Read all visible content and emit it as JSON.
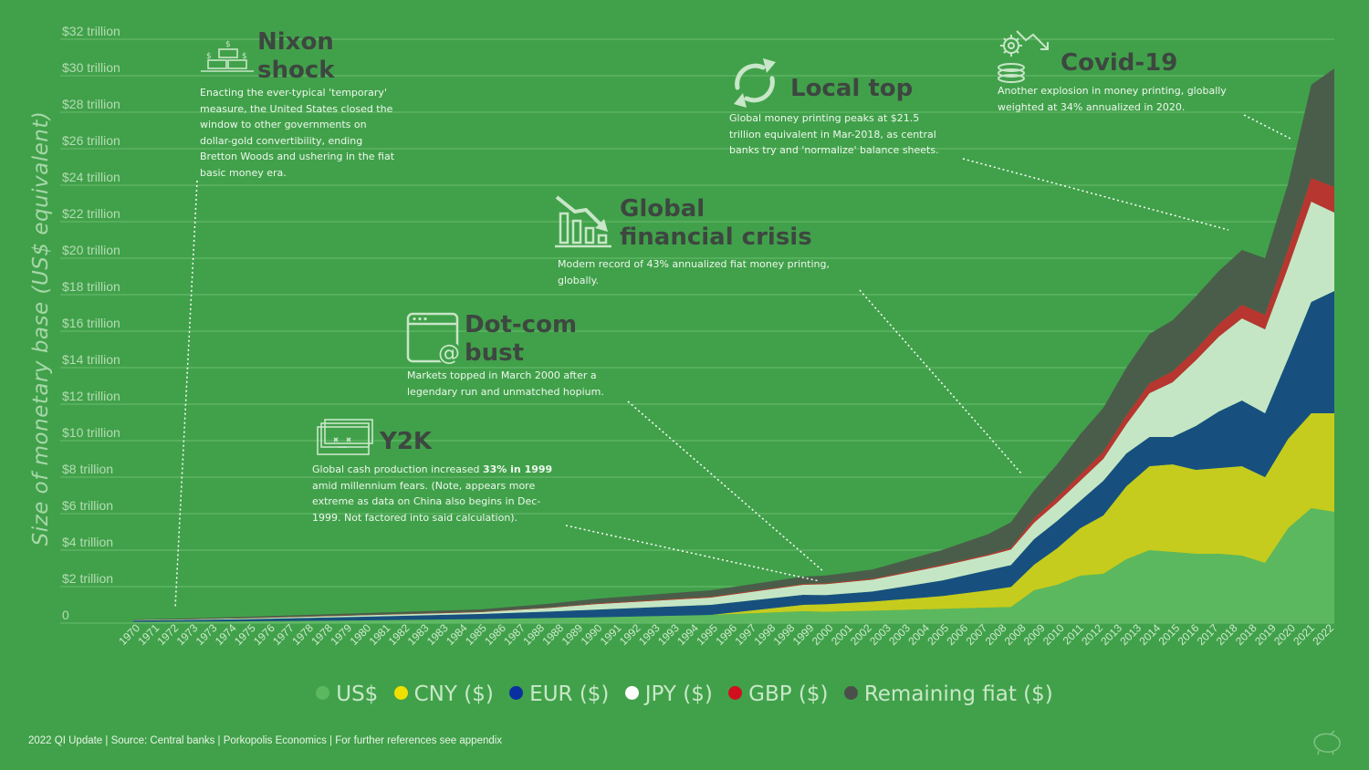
{
  "chart_data": {
    "type": "area",
    "stacked": true,
    "ylabel": "Size of monetary base (US$ equivalent)",
    "ylim": [
      0,
      32
    ],
    "y_ticks": [
      "0",
      "$2 trillion",
      "$4 trillion",
      "$6 trillion",
      "$8 trillion",
      "$10 trillion",
      "$12 trillion",
      "$14 trillion",
      "$16 trillion",
      "$18 trillion",
      "$20 trillion",
      "$22 trillion",
      "$24 trillion",
      "$26 trillion",
      "$28 trillion",
      "$30 trillion",
      "$32 trillion"
    ],
    "x_ticks": [
      "1970",
      "1971",
      "1972",
      "1973",
      "1973",
      "1974",
      "1975",
      "1976",
      "1977",
      "1978",
      "1978",
      "1979",
      "1980",
      "1981",
      "1982",
      "1983",
      "1983",
      "1984",
      "1985",
      "1986",
      "1987",
      "1988",
      "1988",
      "1989",
      "1990",
      "1991",
      "1992",
      "1993",
      "1993",
      "1994",
      "1995",
      "1996",
      "1997",
      "1998",
      "1998",
      "1999",
      "2000",
      "2001",
      "2002",
      "2003",
      "2003",
      "2004",
      "2005",
      "2006",
      "2007",
      "2008",
      "2008",
      "2009",
      "2010",
      "2011",
      "2012",
      "2013",
      "2013",
      "2014",
      "2015",
      "2016",
      "2017",
      "2018",
      "2018",
      "2019",
      "2020",
      "2021",
      "2022"
    ],
    "x": [
      1970,
      1972,
      1975,
      1980,
      1985,
      1988,
      1990,
      1995,
      1999,
      2000,
      2002,
      2005,
      2007,
      2008,
      2009,
      2010,
      2011,
      2012,
      2013,
      2014,
      2015,
      2016,
      2017,
      2018,
      2019,
      2020,
      2021,
      2022
    ],
    "series": [
      {
        "name": "US$",
        "color": "#5cb85e",
        "values": [
          0.06,
          0.08,
          0.1,
          0.15,
          0.22,
          0.28,
          0.32,
          0.45,
          0.65,
          0.62,
          0.68,
          0.78,
          0.85,
          0.88,
          1.8,
          2.1,
          2.6,
          2.7,
          3.5,
          4.0,
          3.9,
          3.8,
          3.8,
          3.7,
          3.3,
          5.2,
          6.3,
          6.1
        ]
      },
      {
        "name": "CNY ($)",
        "color": "#c6cc1d",
        "values": [
          0,
          0,
          0,
          0,
          0,
          0,
          0,
          0,
          0.35,
          0.42,
          0.5,
          0.7,
          0.95,
          1.1,
          1.4,
          2.0,
          2.6,
          3.2,
          4.0,
          4.6,
          4.8,
          4.6,
          4.7,
          4.9,
          4.7,
          4.9,
          5.2,
          5.4
        ]
      },
      {
        "name": "EUR ($)",
        "color": "#17507f",
        "values": [
          0.08,
          0.09,
          0.12,
          0.2,
          0.28,
          0.35,
          0.42,
          0.55,
          0.55,
          0.5,
          0.55,
          0.85,
          1.1,
          1.2,
          1.4,
          1.5,
          1.5,
          1.9,
          1.8,
          1.6,
          1.5,
          2.4,
          3.1,
          3.6,
          3.5,
          4.4,
          6.1,
          6.7
        ]
      },
      {
        "name": "JPY ($)",
        "color": "#c5e6c5",
        "values": [
          0.02,
          0.03,
          0.05,
          0.08,
          0.1,
          0.2,
          0.3,
          0.4,
          0.55,
          0.6,
          0.65,
          0.8,
          0.8,
          0.85,
          0.9,
          1.0,
          1.1,
          1.2,
          1.6,
          2.4,
          3.0,
          3.6,
          4.1,
          4.5,
          4.6,
          5.0,
          5.5,
          4.3
        ]
      },
      {
        "name": "GBP ($)",
        "color": "#b73630",
        "values": [
          0.01,
          0.01,
          0.02,
          0.02,
          0.03,
          0.03,
          0.04,
          0.05,
          0.05,
          0.05,
          0.06,
          0.07,
          0.07,
          0.1,
          0.25,
          0.3,
          0.35,
          0.4,
          0.5,
          0.55,
          0.6,
          0.6,
          0.7,
          0.75,
          0.8,
          1.0,
          1.3,
          1.4
        ]
      },
      {
        "name": "Remaining fiat ($)",
        "color": "#4a5d4a",
        "values": [
          0.03,
          0.04,
          0.06,
          0.1,
          0.12,
          0.2,
          0.25,
          0.35,
          0.4,
          0.42,
          0.5,
          0.8,
          1.1,
          1.4,
          1.5,
          1.8,
          2.2,
          2.4,
          2.6,
          2.7,
          2.8,
          2.9,
          2.9,
          3.0,
          3.1,
          3.6,
          5.1,
          6.5
        ]
      }
    ],
    "grid": true,
    "legend_position": "bottom"
  },
  "annotations": {
    "nixon": {
      "title_l1": "Nixon",
      "title_l2": "shock",
      "body": [
        "Enacting the ever-typical 'temporary'",
        "measure, the United States closed the",
        "window to other governments on",
        "dollar-gold convertibility, ending",
        "Bretton Woods and ushering in the fiat",
        "basic money era."
      ]
    },
    "local_top": {
      "title": "Local top",
      "body": [
        "Global money printing peaks at $21.5",
        "trillion equivalent in Mar-2018, as central",
        "banks try and 'normalize' balance sheets."
      ]
    },
    "covid": {
      "title": "Covid-19",
      "body": [
        "Another explosion in money printing, globally",
        "weighted at 34% annualized in 2020."
      ]
    },
    "gfc": {
      "title_l1": "Global",
      "title_l2": "financial crisis",
      "body": [
        "Modern record of 43% annualized fiat money printing,",
        "globally."
      ]
    },
    "dotcom": {
      "title_l1": "Dot-com",
      "title_l2": "bust",
      "body": [
        "Markets topped in March 2000 after a",
        "legendary run and unmatched hopium."
      ]
    },
    "y2k": {
      "title": "Y2K",
      "body_l1_plain": "Global cash production increased ",
      "body_l1_bold": "33% in 1999",
      "body": [
        "amid millennium fears. (Note, appears more",
        "extreme as data on China also begins in Dec-",
        "1999. Not factored into said calculation)."
      ]
    }
  },
  "legend": [
    {
      "label": "US$",
      "color": "#5cb85e"
    },
    {
      "label": "CNY ($)",
      "color": "#f0e000"
    },
    {
      "label": "EUR ($)",
      "color": "#0a2fa0"
    },
    {
      "label": "JPY ($)",
      "color": "#ffffff"
    },
    {
      "label": "GBP ($)",
      "color": "#d0101e"
    },
    {
      "label": "Remaining fiat ($)",
      "color": "#4a4f4a"
    }
  ],
  "footer": "2022 QI Update | Source: Central banks | Porkopolis Economics | For further references see appendix"
}
